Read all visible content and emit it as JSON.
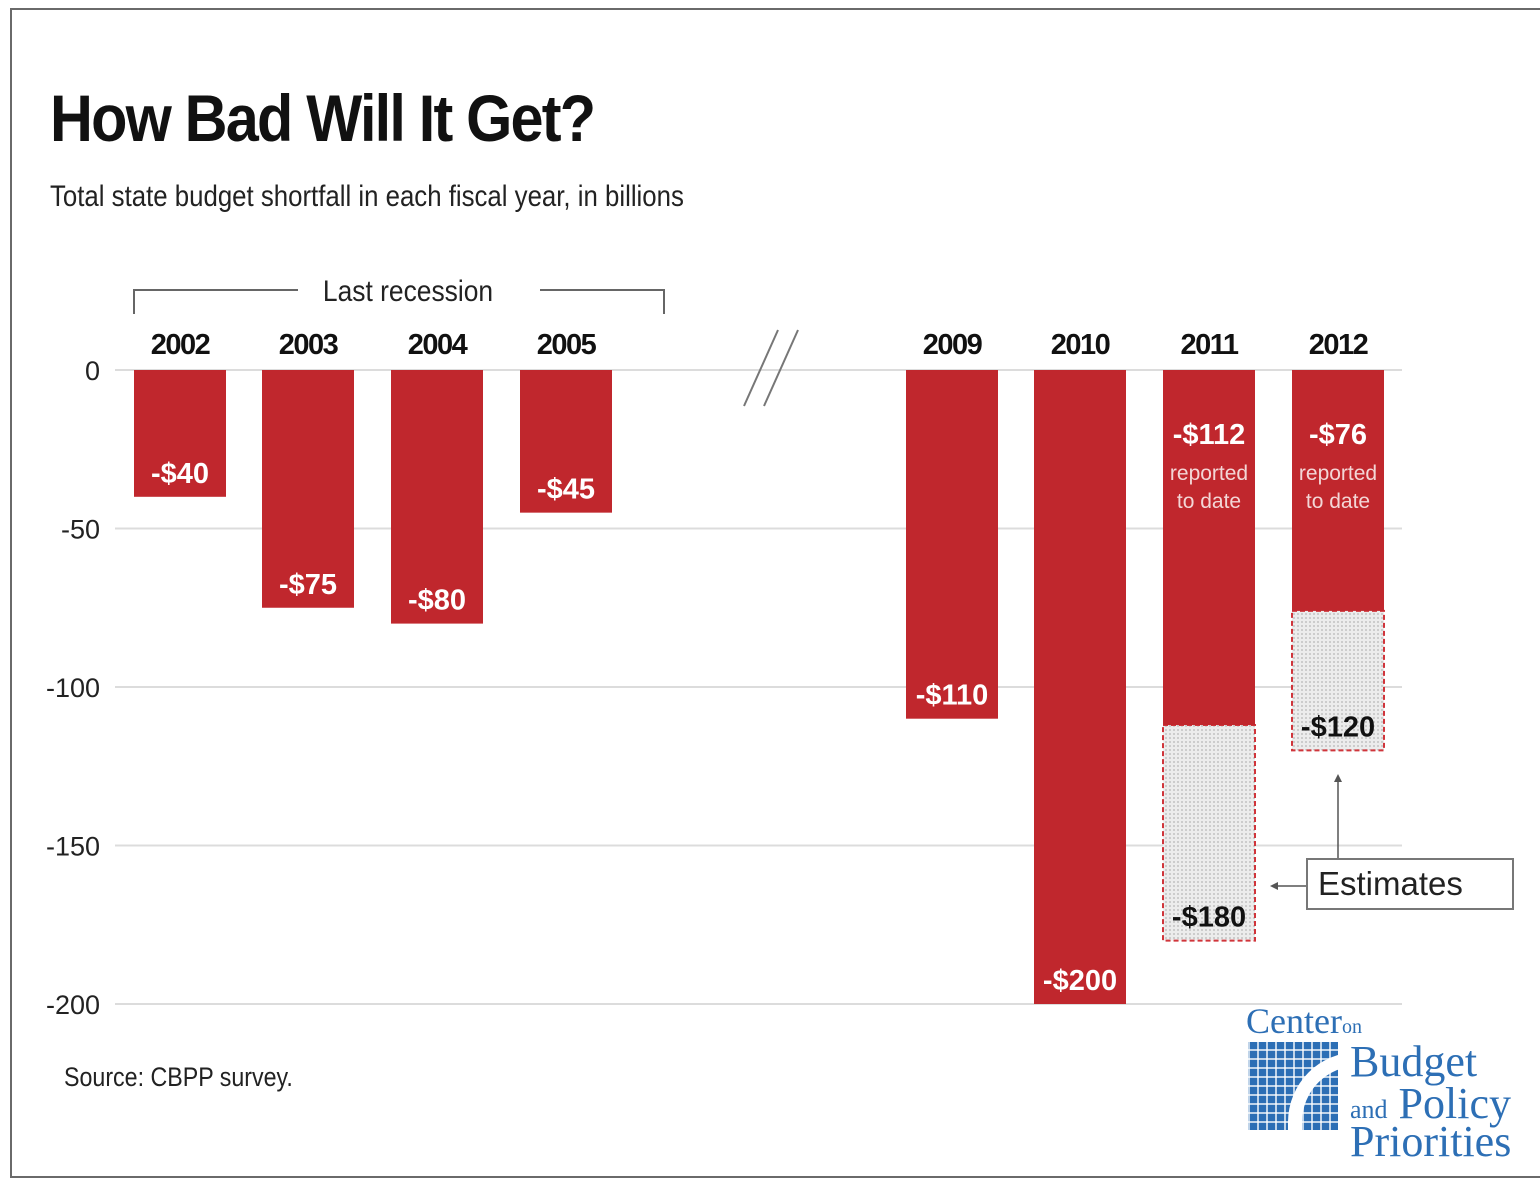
{
  "chart_data": {
    "type": "bar",
    "title": "How Bad Will It Get?",
    "subtitle": "Total state budget shortfall in each fiscal year, in billions",
    "source": "Source:  CBPP survey.",
    "ylim": [
      -200,
      0
    ],
    "yticks": [
      {
        "value": 0,
        "label": "0"
      },
      {
        "value": -50,
        "label": "-50"
      },
      {
        "value": -100,
        "label": "-100"
      },
      {
        "value": -150,
        "label": "-150"
      },
      {
        "value": -200,
        "label": "-200"
      }
    ],
    "grid": true,
    "categories": [
      "2002",
      "2003",
      "2004",
      "2005",
      "2009",
      "2010",
      "2011",
      "2012"
    ],
    "axis_break_between": [
      "2005",
      "2009"
    ],
    "bracket_label": "Last recession",
    "bracket_categories": [
      "2002",
      "2003",
      "2004",
      "2005"
    ],
    "bars": [
      {
        "year": "2002",
        "value": -40,
        "label": "-$40"
      },
      {
        "year": "2003",
        "value": -75,
        "label": "-$75"
      },
      {
        "year": "2004",
        "value": -80,
        "label": "-$80"
      },
      {
        "year": "2005",
        "value": -45,
        "label": "-$45"
      },
      {
        "year": "2009",
        "value": -110,
        "label": "-$110"
      },
      {
        "year": "2010",
        "value": -200,
        "label": "-$200"
      },
      {
        "year": "2011",
        "value": -112,
        "label": "-$112",
        "note": [
          "reported",
          "to date"
        ],
        "estimate": -180,
        "estimate_label": "-$180"
      },
      {
        "year": "2012",
        "value": -76,
        "label": "-$76",
        "note": [
          "reported",
          "to date"
        ],
        "estimate": -120,
        "estimate_label": "-$120"
      }
    ],
    "estimates_label": "Estimates",
    "colors": {
      "bar": "#c0272d",
      "estimate_fill": "#e6e6e6",
      "estimate_border": "#d0353b",
      "grid": "#dcdcdc"
    }
  },
  "logo": {
    "line1": "Center",
    "line1_small": "on",
    "line2": "Budget",
    "line3_small": "and",
    "line3": "Policy",
    "line4": "Priorities"
  }
}
